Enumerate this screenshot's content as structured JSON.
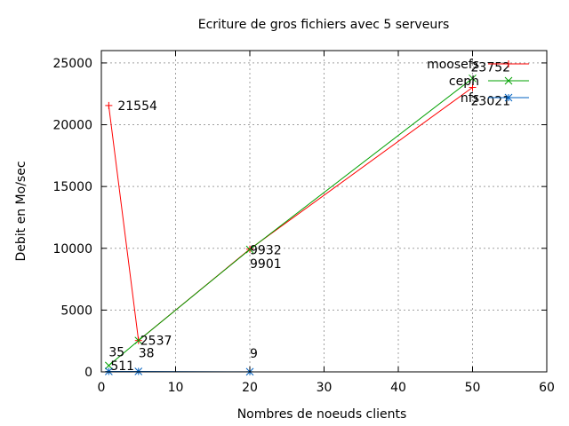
{
  "chart_data": {
    "type": "line",
    "title": "Ecriture de gros fichiers avec 5 serveurs",
    "xlabel": "Nombres de noeuds clients",
    "ylabel": "Debit en Mo/sec",
    "xlim": [
      0,
      60
    ],
    "ylim": [
      0,
      26000
    ],
    "xticks": [
      0,
      10,
      20,
      30,
      40,
      50,
      60
    ],
    "yticks": [
      0,
      5000,
      10000,
      15000,
      20000,
      25000
    ],
    "grid": true,
    "legend_position": "top-right",
    "series": [
      {
        "name": "moosefs",
        "color": "#ff0000",
        "marker": "plus",
        "x": [
          1,
          5,
          20,
          50
        ],
        "y": [
          21554,
          2537,
          9932,
          23021
        ],
        "labels": [
          "21554",
          "2537",
          "9932",
          "23021"
        ]
      },
      {
        "name": "ceph",
        "color": "#00a000",
        "marker": "cross",
        "x": [
          1,
          5,
          20,
          50
        ],
        "y": [
          511,
          2537,
          9901,
          23752
        ],
        "labels": [
          "511",
          "",
          "9901",
          "23752"
        ]
      },
      {
        "name": "nfs",
        "color": "#0060c0",
        "marker": "star",
        "x": [
          1,
          5,
          20
        ],
        "y": [
          35,
          38,
          9
        ],
        "labels": [
          "35",
          "38",
          "9"
        ]
      }
    ]
  }
}
